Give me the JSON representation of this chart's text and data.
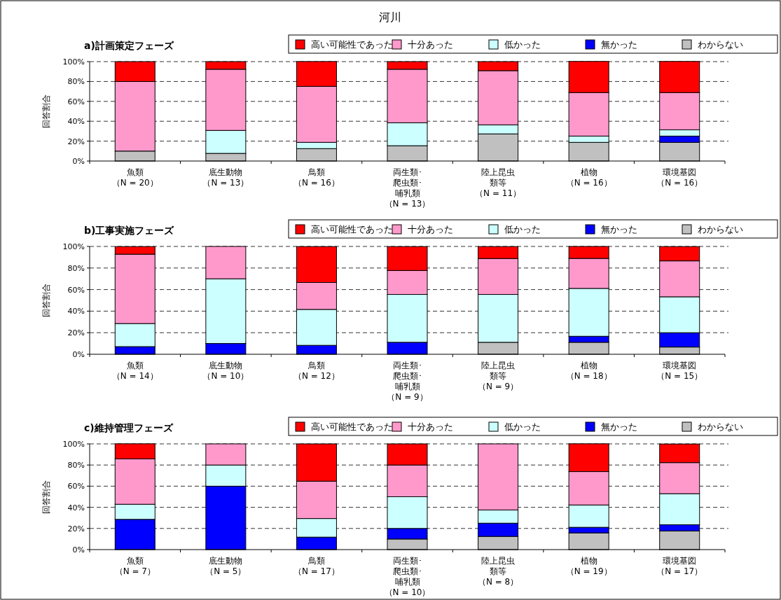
{
  "chart_data": [
    {
      "type": "bar",
      "title": "河川",
      "subtitle": "a)計画策定フェーズ",
      "ylabel": "回答割合",
      "stacked": true,
      "grid": "y",
      "legend": "top right",
      "categories": [
        "魚類（N = 20）",
        "底生動物（N = 13）",
        "鳥類（N = 16）",
        "両生類･爬虫類･哺乳類（N = 13）",
        "陸上昆虫類等（N = 11）",
        "植物（N = 16）",
        "環境基図（N = 16）"
      ],
      "ylim": [
        0,
        100
      ],
      "yticks": [
        {
          "value": 0,
          "label": "0%"
        },
        {
          "value": 20,
          "label": "20%"
        },
        {
          "value": 40,
          "label": "40%"
        },
        {
          "value": 60,
          "label": "60%"
        },
        {
          "value": 80,
          "label": "80%"
        },
        {
          "value": 100,
          "label": "100%"
        }
      ],
      "series": [
        {
          "name": "わからない",
          "color": "#c0c0c0",
          "values": [
            10,
            7.7,
            12.5,
            15.4,
            27.3,
            18.8,
            18.8
          ]
        },
        {
          "name": "無かった",
          "color": "#0000ff",
          "values": [
            0,
            0,
            0,
            0,
            0,
            0,
            6.3
          ]
        },
        {
          "name": "低かった",
          "color": "#ccffff",
          "values": [
            0,
            23.1,
            6.3,
            23.1,
            9.1,
            6.3,
            6.3
          ]
        },
        {
          "name": "十分あった",
          "color": "#ff99cc",
          "values": [
            70,
            61.5,
            56.3,
            53.8,
            54.5,
            43.8,
            37.5
          ]
        },
        {
          "name": "高い可能性であった",
          "color": "#ff0000",
          "values": [
            20,
            7.7,
            25,
            7.7,
            9.1,
            31.3,
            31.3
          ]
        }
      ]
    },
    {
      "type": "bar",
      "subtitle": "b)工事実施フェーズ",
      "ylabel": "回答割合",
      "stacked": true,
      "grid": "y",
      "legend": "top right",
      "categories": [
        "魚類（N = 14）",
        "底生動物（N = 10）",
        "鳥類（N = 12）",
        "両生類･爬虫類･哺乳類（N = 9）",
        "陸上昆虫類等（N = 9）",
        "植物（N = 18）",
        "環境基図（N = 15）"
      ],
      "ylim": [
        0,
        100
      ],
      "yticks": [
        {
          "value": 0,
          "label": "0%"
        },
        {
          "value": 20,
          "label": "20%"
        },
        {
          "value": 40,
          "label": "40%"
        },
        {
          "value": 60,
          "label": "60%"
        },
        {
          "value": 80,
          "label": "80%"
        },
        {
          "value": 100,
          "label": "100%"
        }
      ],
      "series": [
        {
          "name": "わからない",
          "color": "#c0c0c0",
          "values": [
            0,
            0,
            0,
            0,
            11.1,
            11.1,
            6.7
          ]
        },
        {
          "name": "無かった",
          "color": "#0000ff",
          "values": [
            7.1,
            10,
            8.3,
            11.1,
            0,
            5.6,
            13.3
          ]
        },
        {
          "name": "低かった",
          "color": "#ccffff",
          "values": [
            21.4,
            60,
            33.3,
            44.4,
            44.4,
            44.4,
            33.3
          ]
        },
        {
          "name": "十分あった",
          "color": "#ff99cc",
          "values": [
            64.3,
            30,
            25,
            22.2,
            33.3,
            27.8,
            33.3
          ]
        },
        {
          "name": "高い可能性であった",
          "color": "#ff0000",
          "values": [
            7.1,
            0,
            33.3,
            22.2,
            11.1,
            11.1,
            13.3
          ]
        }
      ]
    },
    {
      "type": "bar",
      "subtitle": "c)維持管理フェーズ",
      "ylabel": "回答割合",
      "stacked": true,
      "grid": "y",
      "legend": "top right",
      "categories": [
        "魚類（N = 7）",
        "底生動物（N = 5）",
        "鳥類（N = 17）",
        "両生類･爬虫類･哺乳類（N = 10）",
        "陸上昆虫類等（N = 8）",
        "植物（N = 19）",
        "環境基図（N = 17）"
      ],
      "ylim": [
        0,
        100
      ],
      "yticks": [
        {
          "value": 0,
          "label": "0%"
        },
        {
          "value": 20,
          "label": "20%"
        },
        {
          "value": 40,
          "label": "40%"
        },
        {
          "value": 60,
          "label": "60%"
        },
        {
          "value": 80,
          "label": "80%"
        },
        {
          "value": 100,
          "label": "100%"
        }
      ],
      "series": [
        {
          "name": "わからない",
          "color": "#c0c0c0",
          "values": [
            0,
            0,
            0,
            10,
            12.5,
            15.8,
            17.6
          ]
        },
        {
          "name": "無かった",
          "color": "#0000ff",
          "values": [
            28.6,
            60,
            11.8,
            10,
            12.5,
            5.3,
            5.9
          ]
        },
        {
          "name": "低かった",
          "color": "#ccffff",
          "values": [
            14.3,
            20,
            17.6,
            30,
            12.5,
            21.1,
            29.4
          ]
        },
        {
          "name": "十分あった",
          "color": "#ff99cc",
          "values": [
            42.9,
            20,
            35.3,
            30,
            62.5,
            31.6,
            29.4
          ]
        },
        {
          "name": "高い可能性であった",
          "color": "#ff0000",
          "values": [
            14.3,
            0,
            35.3,
            20,
            0,
            26.3,
            17.6
          ]
        }
      ]
    }
  ]
}
